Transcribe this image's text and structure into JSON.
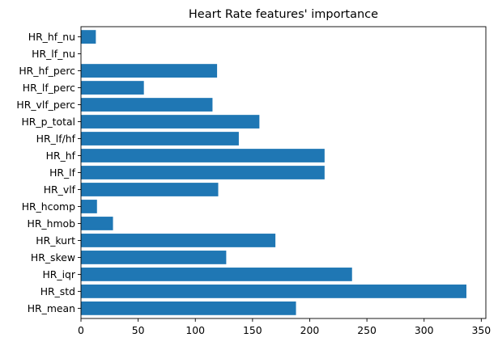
{
  "chart_data": {
    "type": "bar",
    "orientation": "horizontal",
    "title": "Heart Rate features' importance",
    "xlabel": "",
    "ylabel": "",
    "categories": [
      "HR_mean",
      "HR_std",
      "HR_iqr",
      "HR_skew",
      "HR_kurt",
      "HR_hmob",
      "HR_hcomp",
      "HR_vlf",
      "HR_lf",
      "HR_hf",
      "HR_lf/hf",
      "HR_p_total",
      "HR_vlf_perc",
      "HR_lf_perc",
      "HR_hf_perc",
      "HR_lf_nu",
      "HR_hf_nu"
    ],
    "values": [
      188,
      337,
      237,
      127,
      170,
      28,
      14,
      120,
      213,
      213,
      138,
      156,
      115,
      55,
      119,
      0,
      13
    ],
    "xlim": [
      0,
      354
    ],
    "xticks": [
      0,
      50,
      100,
      150,
      200,
      250,
      300,
      350
    ],
    "grid": false,
    "colors": {
      "bar": "#1f77b4",
      "axes": "#000000"
    }
  }
}
